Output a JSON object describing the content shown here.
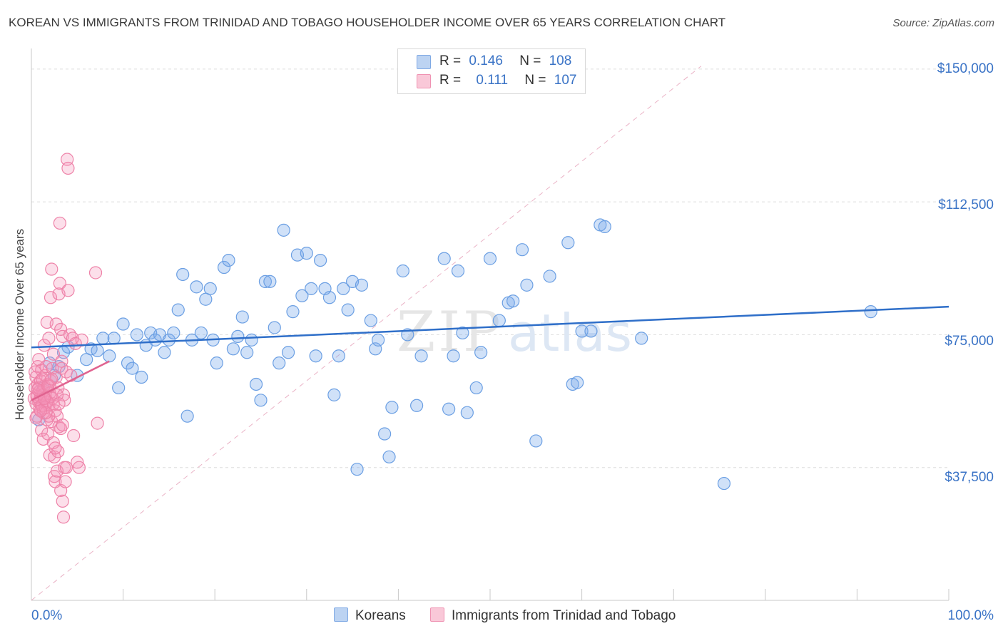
{
  "title": "KOREAN VS IMMIGRANTS FROM TRINIDAD AND TOBAGO HOUSEHOLDER INCOME OVER 65 YEARS CORRELATION CHART",
  "source": "Source: ZipAtlas.com",
  "watermark": "ZIPatlas",
  "colors": {
    "blue": "#6b9fe3",
    "blue_fill": "rgba(120,170,235,0.35)",
    "blue_line": "#2f6fc9",
    "pink": "#ee82a8",
    "pink_fill": "rgba(245,150,185,0.30)",
    "pink_line": "#e0628f",
    "label": "#3a73c6"
  },
  "legend": {
    "rows": [
      {
        "r_label": "R =",
        "r_value": "0.146",
        "n_label": "N =",
        "n_value": "108"
      },
      {
        "r_label": "R =",
        "r_value": "0.111",
        "n_label": "N =",
        "n_value": "107"
      }
    ]
  },
  "series_labels": {
    "koreans": "Koreans",
    "trinidad": "Immigrants from Trinidad and Tobago"
  },
  "axes": {
    "ylabel": "Householder Income Over 65 years",
    "x_min_label": "0.0%",
    "x_max_label": "100.0%",
    "y_tick_labels": [
      "$150,000",
      "$112,500",
      "$75,000",
      "$37,500"
    ]
  },
  "chart_data": {
    "type": "scatter",
    "title": "KOREAN VS IMMIGRANTS FROM TRINIDAD AND TOBAGO HOUSEHOLDER INCOME OVER 65 YEARS CORRELATION CHART",
    "xlabel": "",
    "ylabel": "Householder Income Over 65 years",
    "xlim": [
      0,
      100
    ],
    "ylim": [
      0,
      155000
    ],
    "y_ticks": [
      37500,
      75000,
      112500,
      150000
    ],
    "grid": true,
    "legend_position": "top-center",
    "series": [
      {
        "name": "Koreans",
        "r": 0.146,
        "n": 108,
        "trend": {
          "x": [
            0,
            100
          ],
          "y": [
            71400,
            82900
          ]
        },
        "points": [
          [
            0.8,
            51000
          ],
          [
            1.3,
            60000
          ],
          [
            2.0,
            67000
          ],
          [
            2.5,
            63500
          ],
          [
            3.0,
            66000
          ],
          [
            3.5,
            70000
          ],
          [
            4.0,
            71500
          ],
          [
            5.0,
            63500
          ],
          [
            6.0,
            68000
          ],
          [
            6.5,
            71000
          ],
          [
            7.2,
            70500
          ],
          [
            7.8,
            74000
          ],
          [
            8.5,
            69000
          ],
          [
            9.0,
            74000
          ],
          [
            9.5,
            60000
          ],
          [
            10.0,
            78000
          ],
          [
            10.5,
            67000
          ],
          [
            11.0,
            65500
          ],
          [
            11.5,
            75000
          ],
          [
            12.0,
            63000
          ],
          [
            12.5,
            72000
          ],
          [
            13.0,
            75500
          ],
          [
            13.5,
            73500
          ],
          [
            14.0,
            75000
          ],
          [
            14.5,
            70000
          ],
          [
            15.0,
            73500
          ],
          [
            15.5,
            75500
          ],
          [
            16.0,
            82000
          ],
          [
            16.5,
            92000
          ],
          [
            17.0,
            52000
          ],
          [
            17.5,
            73500
          ],
          [
            18.0,
            88500
          ],
          [
            18.5,
            75500
          ],
          [
            19.0,
            85000
          ],
          [
            19.5,
            88000
          ],
          [
            19.8,
            73500
          ],
          [
            20.2,
            67000
          ],
          [
            21.0,
            94000
          ],
          [
            21.5,
            96000
          ],
          [
            22.0,
            71000
          ],
          [
            22.5,
            74500
          ],
          [
            23.0,
            80000
          ],
          [
            23.5,
            70000
          ],
          [
            24.0,
            73500
          ],
          [
            24.5,
            61000
          ],
          [
            25.0,
            56500
          ],
          [
            25.5,
            90000
          ],
          [
            26.0,
            90000
          ],
          [
            26.5,
            77000
          ],
          [
            27.0,
            67000
          ],
          [
            27.5,
            104500
          ],
          [
            28.0,
            70000
          ],
          [
            28.5,
            81500
          ],
          [
            29.0,
            97500
          ],
          [
            29.5,
            86000
          ],
          [
            30.0,
            98000
          ],
          [
            30.5,
            88000
          ],
          [
            31.0,
            69000
          ],
          [
            31.5,
            96000
          ],
          [
            32.0,
            88000
          ],
          [
            32.5,
            85500
          ],
          [
            33.0,
            58000
          ],
          [
            33.5,
            69000
          ],
          [
            34.0,
            88000
          ],
          [
            34.5,
            82000
          ],
          [
            35.0,
            90000
          ],
          [
            35.5,
            37000
          ],
          [
            36.0,
            89000
          ],
          [
            37.0,
            79000
          ],
          [
            37.5,
            71000
          ],
          [
            37.8,
            73500
          ],
          [
            38.5,
            47000
          ],
          [
            39.0,
            40500
          ],
          [
            39.3,
            54500
          ],
          [
            40.5,
            93000
          ],
          [
            41.0,
            75000
          ],
          [
            42.0,
            55000
          ],
          [
            42.5,
            69000
          ],
          [
            45.0,
            96500
          ],
          [
            45.5,
            54000
          ],
          [
            46.0,
            69000
          ],
          [
            46.5,
            93000
          ],
          [
            47.0,
            75500
          ],
          [
            47.5,
            53000
          ],
          [
            48.5,
            60000
          ],
          [
            49.0,
            70000
          ],
          [
            50.0,
            96500
          ],
          [
            51.0,
            79000
          ],
          [
            52.0,
            84000
          ],
          [
            52.5,
            84500
          ],
          [
            53.5,
            99000
          ],
          [
            54.0,
            89000
          ],
          [
            55.0,
            45000
          ],
          [
            56.5,
            91500
          ],
          [
            58.5,
            101000
          ],
          [
            59.0,
            61000
          ],
          [
            59.5,
            61500
          ],
          [
            60.0,
            76000
          ],
          [
            61.0,
            76000
          ],
          [
            62.0,
            106000
          ],
          [
            62.5,
            105500
          ],
          [
            66.5,
            74000
          ],
          [
            75.5,
            33000
          ],
          [
            91.5,
            81500
          ]
        ]
      },
      {
        "name": "Immigrants from Trinidad and Tobago",
        "r": 0.111,
        "n": 107,
        "trend": {
          "x": [
            0,
            8.5
          ],
          "y": [
            56500,
            67500
          ]
        },
        "points": [
          [
            0.3,
            57000
          ],
          [
            0.4,
            60000
          ],
          [
            0.5,
            55500
          ],
          [
            0.5,
            63000
          ],
          [
            0.6,
            58000
          ],
          [
            0.6,
            52000
          ],
          [
            0.7,
            66000
          ],
          [
            0.7,
            61000
          ],
          [
            0.8,
            56000
          ],
          [
            0.8,
            68000
          ],
          [
            0.9,
            59000
          ],
          [
            0.9,
            54000
          ],
          [
            1.0,
            57500
          ],
          [
            1.0,
            62000
          ],
          [
            1.1,
            65000
          ],
          [
            1.1,
            48000
          ],
          [
            1.2,
            55000
          ],
          [
            1.2,
            59000
          ],
          [
            1.3,
            53000
          ],
          [
            1.3,
            45500
          ],
          [
            1.4,
            60500
          ],
          [
            1.4,
            72000
          ],
          [
            1.5,
            57000
          ],
          [
            1.5,
            63500
          ],
          [
            1.6,
            56000
          ],
          [
            1.6,
            66000
          ],
          [
            1.7,
            51000
          ],
          [
            1.7,
            78500
          ],
          [
            1.8,
            61000
          ],
          [
            1.8,
            47000
          ],
          [
            1.9,
            55000
          ],
          [
            1.9,
            74000
          ],
          [
            2.0,
            58500
          ],
          [
            2.0,
            41000
          ],
          [
            2.1,
            62000
          ],
          [
            2.1,
            85500
          ],
          [
            2.2,
            50500
          ],
          [
            2.2,
            93500
          ],
          [
            2.3,
            57000
          ],
          [
            2.3,
            65500
          ],
          [
            2.4,
            44500
          ],
          [
            2.4,
            69500
          ],
          [
            2.5,
            40500
          ],
          [
            2.5,
            35000
          ],
          [
            2.6,
            53500
          ],
          [
            2.6,
            33500
          ],
          [
            2.7,
            78000
          ],
          [
            2.7,
            63000
          ],
          [
            2.8,
            52000
          ],
          [
            2.8,
            36500
          ],
          [
            2.9,
            60000
          ],
          [
            2.9,
            42000
          ],
          [
            3.0,
            86500
          ],
          [
            3.0,
            49000
          ],
          [
            3.1,
            106500
          ],
          [
            3.1,
            89500
          ],
          [
            3.2,
            76500
          ],
          [
            3.2,
            31000
          ],
          [
            3.3,
            67500
          ],
          [
            3.3,
            65500
          ],
          [
            3.4,
            74500
          ],
          [
            3.4,
            28000
          ],
          [
            3.5,
            58000
          ],
          [
            3.5,
            23500
          ],
          [
            3.6,
            56500
          ],
          [
            3.6,
            37500
          ],
          [
            3.7,
            33500
          ],
          [
            3.8,
            64500
          ],
          [
            3.8,
            37500
          ],
          [
            3.9,
            124500
          ],
          [
            4.0,
            122000
          ],
          [
            4.0,
            87500
          ],
          [
            4.2,
            75000
          ],
          [
            4.3,
            63500
          ],
          [
            4.5,
            74000
          ],
          [
            4.6,
            46500
          ],
          [
            4.8,
            72500
          ],
          [
            5.0,
            39000
          ],
          [
            5.2,
            37500
          ],
          [
            5.5,
            73500
          ],
          [
            7.0,
            92500
          ],
          [
            7.2,
            50000
          ],
          [
            0.6,
            57500
          ],
          [
            0.9,
            56500
          ],
          [
            1.1,
            55000
          ],
          [
            1.3,
            58000
          ],
          [
            1.5,
            54500
          ],
          [
            1.7,
            56000
          ],
          [
            1.9,
            52000
          ],
          [
            2.1,
            57500
          ],
          [
            0.4,
            64500
          ],
          [
            0.8,
            60000
          ],
          [
            1.2,
            62500
          ],
          [
            1.6,
            53000
          ],
          [
            2.0,
            60500
          ],
          [
            2.4,
            55500
          ],
          [
            2.8,
            58000
          ],
          [
            3.2,
            48500
          ],
          [
            0.5,
            51500
          ],
          [
            0.7,
            59500
          ],
          [
            1.0,
            53500
          ],
          [
            1.4,
            57000
          ],
          [
            1.8,
            60500
          ],
          [
            2.2,
            62500
          ],
          [
            2.6,
            43000
          ],
          [
            3.0,
            55500
          ],
          [
            3.4,
            49500
          ]
        ]
      }
    ]
  }
}
